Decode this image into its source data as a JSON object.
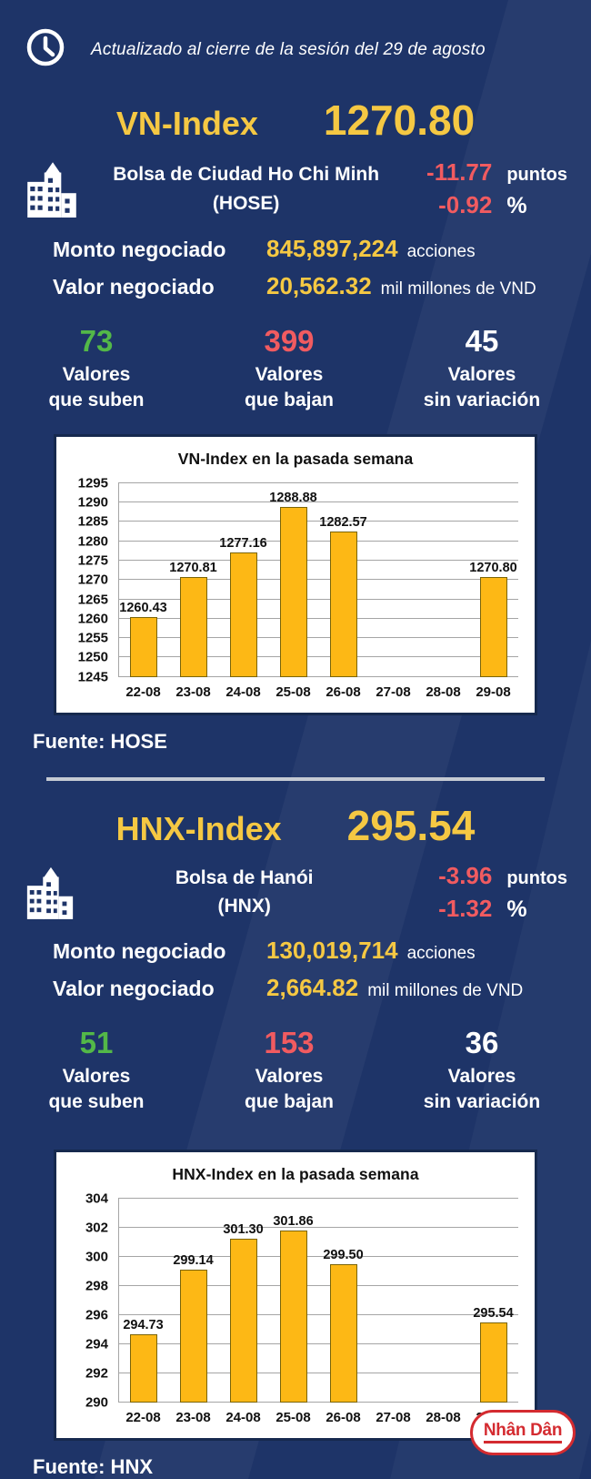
{
  "header": {
    "updated": "Actualizado al cierre de la sesión del 29 de agosto"
  },
  "colors": {
    "background": "#1E3468",
    "gold_text": "#F5C843",
    "bar_gold": "#FDB815",
    "red": "#F15B60",
    "green": "#53B848",
    "logo_red": "#D42B30"
  },
  "vn": {
    "index_name": "VN-Index",
    "index_value": "1270.80",
    "exchange_name": "Bolsa de Ciudad Ho Chi Minh",
    "exchange_code": "(HOSE)",
    "change_points": "-11.77",
    "points_label": "puntos",
    "change_percent": "-0.92",
    "percent_label": "%",
    "volume_label": "Monto negociado",
    "volume_value": "845,897,224",
    "volume_unit": "acciones",
    "value_label": "Valor negociado",
    "value_value": "20,562.32",
    "value_unit": "mil millones de VND",
    "stats": [
      {
        "value": "73",
        "color": "green",
        "line1": "Valores",
        "line2": "que suben"
      },
      {
        "value": "399",
        "color": "red",
        "line1": "Valores",
        "line2": "que bajan"
      },
      {
        "value": "45",
        "color": "white",
        "line1": "Valores",
        "line2": "sin variación"
      }
    ],
    "fuente": "Fuente: HOSE"
  },
  "hnx": {
    "index_name": "HNX-Index",
    "index_value": "295.54",
    "exchange_name": "Bolsa de Hanói",
    "exchange_code": "(HNX)",
    "change_points": "-3.96",
    "points_label": "puntos",
    "change_percent": "-1.32",
    "percent_label": "%",
    "volume_label": "Monto negociado",
    "volume_value": "130,019,714",
    "volume_unit": "acciones",
    "value_label": "Valor negociado",
    "value_value": "2,664.82",
    "value_unit": "mil millones de VND",
    "stats": [
      {
        "value": "51",
        "color": "green",
        "line1": "Valores",
        "line2": "que suben"
      },
      {
        "value": "153",
        "color": "red",
        "line1": "Valores",
        "line2": "que bajan"
      },
      {
        "value": "36",
        "color": "white",
        "line1": "Valores",
        "line2": "sin variación"
      }
    ],
    "fuente": "Fuente: HNX"
  },
  "footer": {
    "logo_text": "Nhân Dân"
  },
  "chart_data": [
    {
      "type": "bar",
      "title": "VN-Index en la pasada semana",
      "categories": [
        "22-08",
        "23-08",
        "24-08",
        "25-08",
        "26-08",
        "27-08",
        "28-08",
        "29-08"
      ],
      "values": [
        1260.43,
        1270.81,
        1277.16,
        1288.88,
        1282.57,
        null,
        null,
        1270.8
      ],
      "value_labels": [
        "1260.43",
        "1270.81",
        "1277.16",
        "1288.88",
        "1282.57",
        null,
        null,
        "1270.80"
      ],
      "xlabel": "",
      "ylabel": "",
      "ylim": [
        1245,
        1295
      ],
      "ystep": 5,
      "grid": true,
      "legend": false,
      "bar_color": "#FDB815"
    },
    {
      "type": "bar",
      "title": "HNX-Index en la pasada semana",
      "categories": [
        "22-08",
        "23-08",
        "24-08",
        "25-08",
        "26-08",
        "27-08",
        "28-08",
        "29-08"
      ],
      "values": [
        294.73,
        299.14,
        301.3,
        301.86,
        299.5,
        null,
        null,
        295.54
      ],
      "value_labels": [
        "294.73",
        "299.14",
        "301.30",
        "301.86",
        "299.50",
        null,
        null,
        "295.54"
      ],
      "xlabel": "",
      "ylabel": "",
      "ylim": [
        290,
        304
      ],
      "ystep": 2,
      "grid": true,
      "legend": false,
      "bar_color": "#FDB815"
    }
  ]
}
